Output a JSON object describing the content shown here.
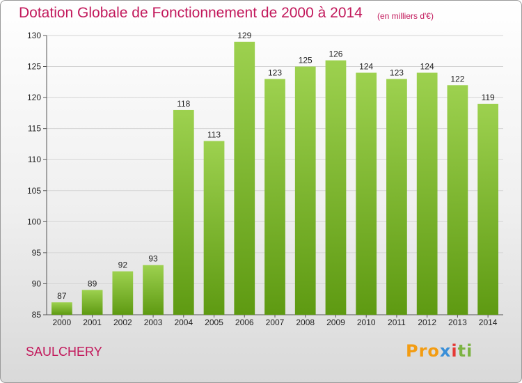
{
  "title": "Dotation Globale de Fonctionnement de 2000 à 2014",
  "subtitle": "(en milliers d'€)",
  "commune": "SAULCHERY",
  "logo": {
    "text": "Proxiti",
    "parts": [
      "Pro",
      "x",
      "i",
      "ti"
    ]
  },
  "colors": {
    "bar_top": "#9dd14f",
    "bar_bottom": "#5e9a12",
    "title": "#c2185b"
  },
  "chart_data": {
    "type": "bar",
    "title": "Dotation Globale de Fonctionnement de 2000 à 2014",
    "subtitle": "(en milliers d'€)",
    "categories": [
      "2000",
      "2001",
      "2002",
      "2003",
      "2004",
      "2005",
      "2006",
      "2007",
      "2008",
      "2009",
      "2010",
      "2011",
      "2012",
      "2013",
      "2014"
    ],
    "values": [
      87,
      89,
      92,
      93,
      118,
      113,
      129,
      123,
      125,
      126,
      124,
      123,
      124,
      122,
      119
    ],
    "value_labels": [
      "87",
      "89",
      "92",
      "93",
      "118",
      "113",
      "129",
      "123",
      "125",
      "126",
      "124",
      "123",
      "124",
      "122",
      "119"
    ],
    "ylim": [
      85,
      130
    ],
    "yticks": [
      85,
      90,
      95,
      100,
      105,
      110,
      115,
      120,
      125,
      130
    ],
    "ytick_labels": [
      "85",
      "90",
      "95",
      "100",
      "105",
      "110",
      "115",
      "120",
      "125",
      "130"
    ],
    "grid": true,
    "xlabel": "",
    "ylabel": ""
  }
}
